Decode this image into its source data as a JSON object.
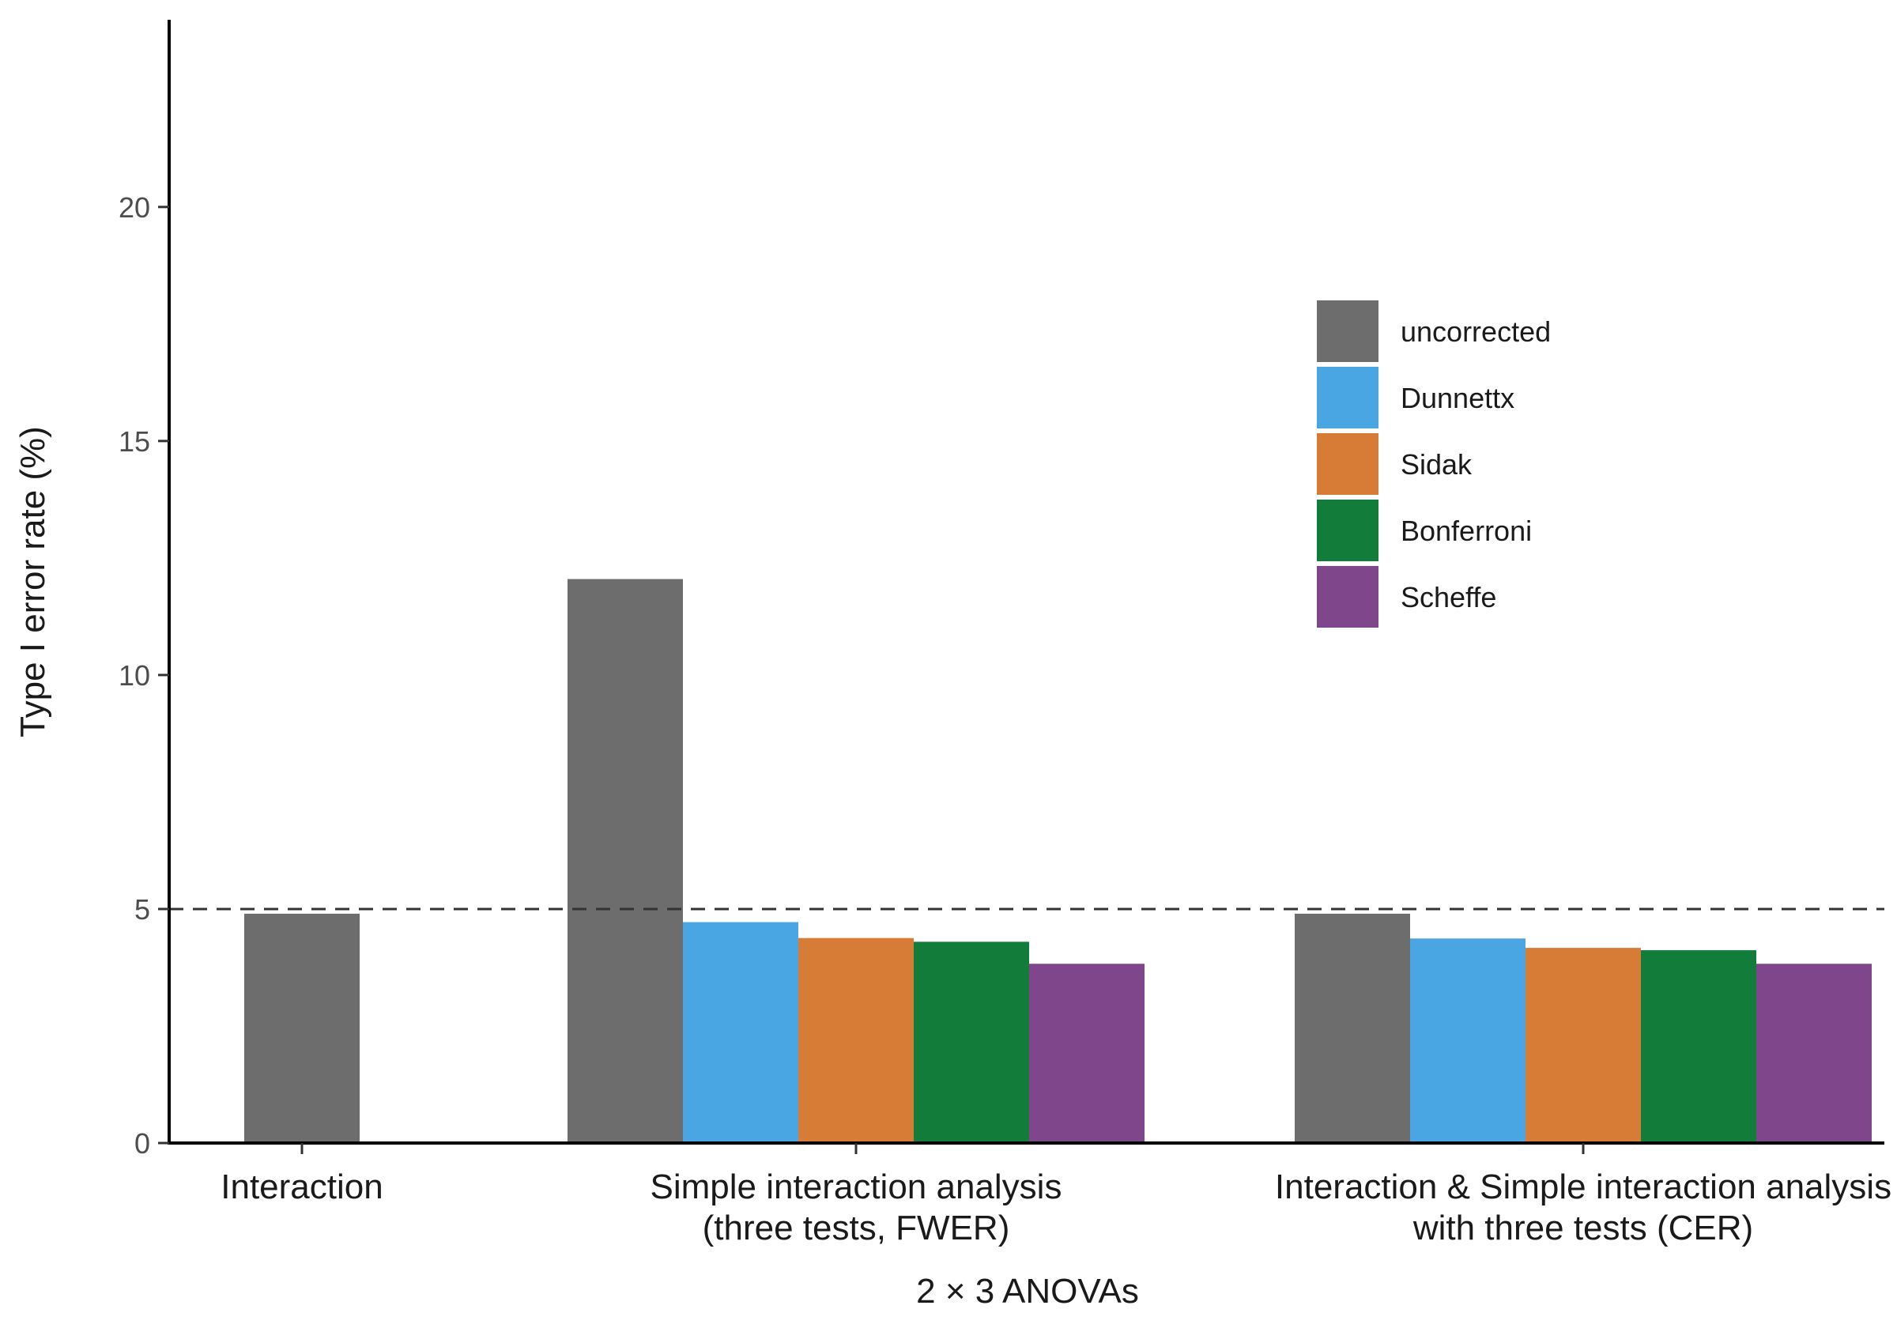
{
  "chart_data": {
    "type": "bar",
    "xlabel": "2 × 3 ANOVAs",
    "ylabel": "Type I error rate (%)",
    "ylim": [
      0,
      24
    ],
    "yticks": [
      0,
      5,
      10,
      15,
      20
    ],
    "reference_line": {
      "y": 5,
      "style": "dashed"
    },
    "grid": false,
    "legend_position": "upper-right",
    "groups": [
      {
        "label_lines": [
          "Interaction"
        ],
        "bars": [
          {
            "series": "uncorrected",
            "value": 4.9
          }
        ]
      },
      {
        "label_lines": [
          "Simple interaction analysis",
          "(three tests, FWER)"
        ],
        "bars": [
          {
            "series": "uncorrected",
            "value": 12.05
          },
          {
            "series": "Dunnettx",
            "value": 4.72
          },
          {
            "series": "Sidak",
            "value": 4.38
          },
          {
            "series": "Bonferroni",
            "value": 4.3
          },
          {
            "series": "Scheffe",
            "value": 3.83
          }
        ]
      },
      {
        "label_lines": [
          "Interaction & Simple interaction analysis",
          "with three tests (CER)"
        ],
        "bars": [
          {
            "series": "uncorrected",
            "value": 4.9
          },
          {
            "series": "Dunnettx",
            "value": 4.37
          },
          {
            "series": "Sidak",
            "value": 4.17
          },
          {
            "series": "Bonferroni",
            "value": 4.12
          },
          {
            "series": "Scheffe",
            "value": 3.83
          }
        ]
      }
    ],
    "series": [
      {
        "name": "uncorrected",
        "color": "#6d6d6d"
      },
      {
        "name": "Dunnettx",
        "color": "#4aa6e3"
      },
      {
        "name": "Sidak",
        "color": "#d67c36"
      },
      {
        "name": "Bonferroni",
        "color": "#127c3a"
      },
      {
        "name": "Scheffe",
        "color": "#80468c"
      }
    ]
  }
}
